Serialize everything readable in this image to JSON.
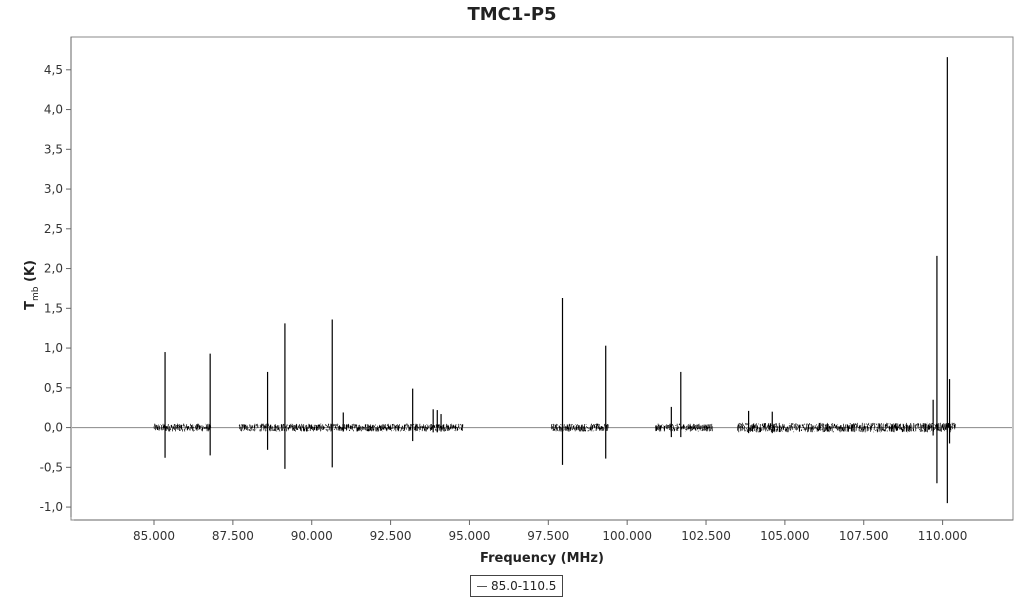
{
  "chart_data": {
    "type": "line",
    "title": "TMC1-P5",
    "xlabel": "Frequency (MHz)",
    "ylabel_main": "T",
    "ylabel_sub": "mb",
    "ylabel_unit": " (K)",
    "xlim": [
      82.4,
      112.2
    ],
    "ylim": [
      -1.15,
      4.9
    ],
    "x_ticks": [
      85000,
      87500,
      90000,
      92500,
      95000,
      97500,
      100000,
      102500,
      105000,
      107500,
      110000
    ],
    "x_tick_labels": [
      "85.000",
      "87.500",
      "90.000",
      "92.500",
      "95.000",
      "97.500",
      "100.000",
      "102.500",
      "105.000",
      "107.500",
      "110.000"
    ],
    "y_ticks": [
      -1.0,
      -0.5,
      0.0,
      0.5,
      1.0,
      1.5,
      2.0,
      2.5,
      3.0,
      3.5,
      4.0,
      4.5
    ],
    "y_tick_labels": [
      "-1,0",
      "-0,5",
      "0,0",
      "0,5",
      "1,0",
      "1,5",
      "2,0",
      "2,5",
      "3,0",
      "3,5",
      "4,0",
      "4,5"
    ],
    "zero_line": true,
    "grid": false,
    "legend_position": "bottom-center",
    "series": [
      {
        "name": "85.0-110.5",
        "color": "#000000",
        "segments": [
          {
            "x_start": 85.0,
            "x_end": 86.8,
            "noise": 0.05
          },
          {
            "x_start": 87.7,
            "x_end": 94.8,
            "noise": 0.05
          },
          {
            "x_start": 97.6,
            "x_end": 99.4,
            "noise": 0.05
          },
          {
            "x_start": 100.9,
            "x_end": 102.7,
            "noise": 0.05
          },
          {
            "x_start": 103.5,
            "x_end": 110.4,
            "noise": 0.06
          }
        ],
        "lines": [
          {
            "x": 85.35,
            "peak": 0.95,
            "trough": -0.38
          },
          {
            "x": 86.78,
            "peak": 0.93,
            "trough": -0.35
          },
          {
            "x": 88.6,
            "peak": 0.7,
            "trough": -0.28
          },
          {
            "x": 89.15,
            "peak": 1.31,
            "trough": -0.52
          },
          {
            "x": 90.65,
            "peak": 1.36,
            "trough": -0.5
          },
          {
            "x": 91.0,
            "peak": 0.19,
            "trough": -0.05
          },
          {
            "x": 93.2,
            "peak": 0.49,
            "trough": -0.17
          },
          {
            "x": 93.85,
            "peak": 0.23,
            "trough": -0.06
          },
          {
            "x": 93.98,
            "peak": 0.22,
            "trough": -0.06
          },
          {
            "x": 94.1,
            "peak": 0.17,
            "trough": -0.05
          },
          {
            "x": 97.95,
            "peak": 1.63,
            "trough": -0.47
          },
          {
            "x": 99.32,
            "peak": 1.03,
            "trough": -0.39
          },
          {
            "x": 101.4,
            "peak": 0.26,
            "trough": -0.12
          },
          {
            "x": 101.7,
            "peak": 0.7,
            "trough": -0.12
          },
          {
            "x": 103.85,
            "peak": 0.21,
            "trough": -0.07
          },
          {
            "x": 104.6,
            "peak": 0.2,
            "trough": -0.07
          },
          {
            "x": 109.7,
            "peak": 0.35,
            "trough": -0.1
          },
          {
            "x": 109.82,
            "peak": 2.16,
            "trough": -0.7
          },
          {
            "x": 110.15,
            "peak": 4.66,
            "trough": -0.95
          },
          {
            "x": 110.22,
            "peak": 0.61,
            "trough": -0.2
          }
        ]
      }
    ]
  }
}
